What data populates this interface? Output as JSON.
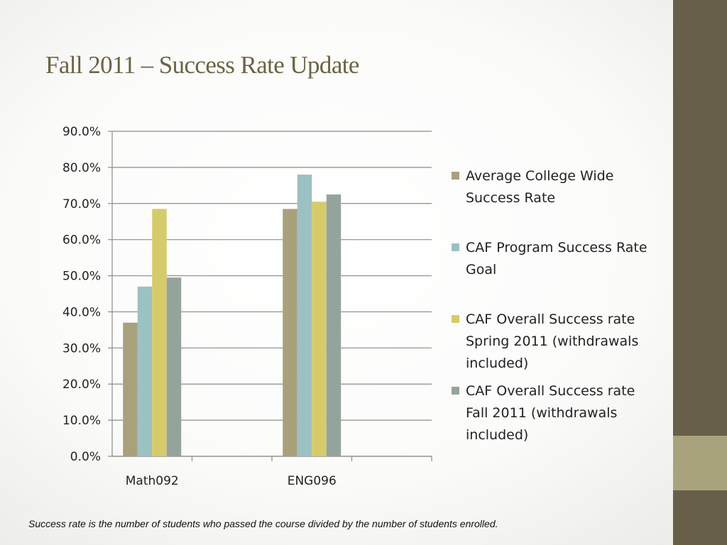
{
  "slide": {
    "title": "Fall 2011 – Success Rate Update",
    "footnote": "Success rate is the number of students who passed the course divided by the number of students enrolled."
  },
  "colors": {
    "side_bar": "#675f47",
    "side_accent": "#a9a37d",
    "title": "#6b6443"
  },
  "chart_data": {
    "type": "bar",
    "title": "",
    "xlabel": "",
    "ylabel": "",
    "categories": [
      "Math092",
      "ENG096"
    ],
    "ylim": [
      0,
      0.9
    ],
    "y_ticks": [
      0.0,
      0.1,
      0.2,
      0.3,
      0.4,
      0.5,
      0.6,
      0.7,
      0.8,
      0.9
    ],
    "y_tick_labels": [
      "0.0%",
      "10.0%",
      "20.0%",
      "30.0%",
      "40.0%",
      "50.0%",
      "60.0%",
      "70.0%",
      "80.0%",
      "90.0%"
    ],
    "grid": true,
    "legend_position": "right",
    "series": [
      {
        "name": "Average College Wide Success Rate",
        "values": [
          0.37,
          0.685
        ],
        "color": "#a9a07c"
      },
      {
        "name": "CAF Program Success Rate Goal",
        "values": [
          0.47,
          0.78
        ],
        "color": "#9bc1c3"
      },
      {
        "name": "CAF Overall Success rate Spring 2011 (withdrawals included)",
        "values": [
          0.685,
          0.705
        ],
        "color": "#d6cb6b"
      },
      {
        "name": "CAF Overall Success rate Fall 2011 (withdrawals included)",
        "values": [
          0.495,
          0.725
        ],
        "color": "#95a39d"
      }
    ]
  }
}
